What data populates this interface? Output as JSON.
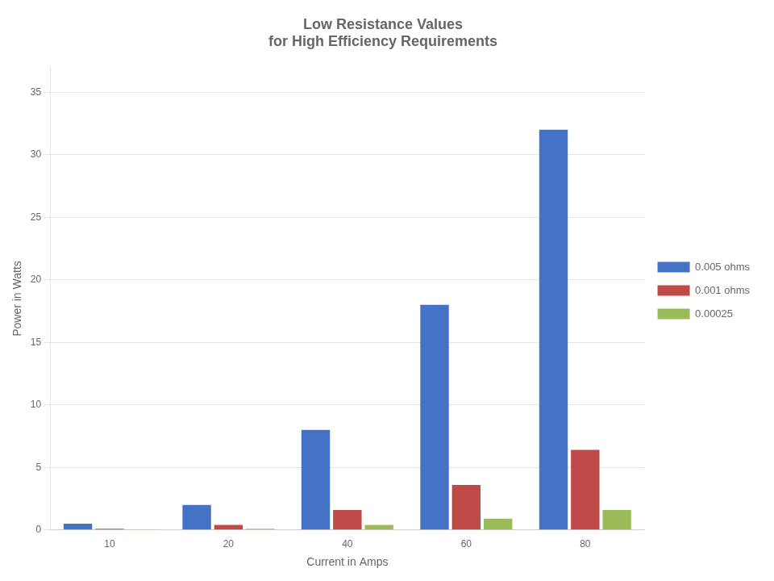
{
  "chart_data": {
    "type": "bar",
    "title": "Low Resistance Values\nfor High Efficiency Requirements",
    "x_label": "Current in Amps",
    "y_label": "Power in Watts",
    "categories": [
      10,
      20,
      40,
      60,
      80
    ],
    "series": [
      {
        "name": "0.005 ohms",
        "color": "#4472C4",
        "values": [
          0.5,
          2.0,
          8.0,
          18.0,
          32.0
        ]
      },
      {
        "name": "0.001 ohms",
        "color": "#BE4B48",
        "values": [
          0.1,
          0.4,
          1.6,
          3.6,
          6.4
        ]
      },
      {
        "name": "0.00025",
        "color": "#9BBB59",
        "values": [
          0.025,
          0.1,
          0.4,
          0.9,
          1.6
        ]
      }
    ],
    "ylim": [
      0,
      37
    ],
    "yticks": [
      0,
      5,
      10,
      15,
      20,
      25,
      30,
      35
    ],
    "grid": true,
    "legend": "right"
  }
}
